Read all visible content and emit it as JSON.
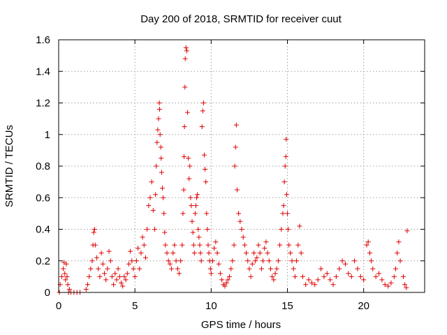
{
  "chart_data": {
    "type": "scatter",
    "title": "Day 200 of 2018, SRMTID for receiver cuut",
    "xlabel": "GPS time / hours",
    "ylabel": "SRMTID / TECUs",
    "xlim": [
      0,
      24
    ],
    "ylim": [
      0,
      1.6
    ],
    "xticks": [
      0,
      5,
      10,
      15,
      20
    ],
    "yticks": [
      0,
      0.2,
      0.4,
      0.6,
      0.8,
      1,
      1.2,
      1.4,
      1.6
    ],
    "xtick_labels": [
      "0",
      "5",
      "10",
      "15",
      "20"
    ],
    "ytick_labels": [
      "0",
      "0.2",
      "0.4",
      "0.6",
      "0.8",
      "1",
      "1.2",
      "1.4",
      "1.6"
    ],
    "grid": true,
    "marker": "+",
    "marker_color": "#e00000",
    "series": [
      {
        "name": "SRMTID",
        "x": [
          0.1,
          0.2,
          0.3,
          0.35,
          0.4,
          0.45,
          0.5,
          0.55,
          0.6,
          0.65,
          0.7,
          0.05,
          0.8,
          1.0,
          1.2,
          1.4,
          1.8,
          1.9,
          2.0,
          2.1,
          2.2,
          2.25,
          2.3,
          2.35,
          2.4,
          2.5,
          2.6,
          2.7,
          2.8,
          2.9,
          3.0,
          3.1,
          3.2,
          3.3,
          3.4,
          3.5,
          3.6,
          3.7,
          3.8,
          3.9,
          4.0,
          4.1,
          4.2,
          4.3,
          4.4,
          4.5,
          4.6,
          4.7,
          4.8,
          4.9,
          5.0,
          5.1,
          5.2,
          5.3,
          5.4,
          5.5,
          5.6,
          5.7,
          5.8,
          5.9,
          6.0,
          6.1,
          6.2,
          6.3,
          6.35,
          6.4,
          6.45,
          6.5,
          6.55,
          6.6,
          6.62,
          6.65,
          6.7,
          6.72,
          6.75,
          6.8,
          6.85,
          6.9,
          6.95,
          7.0,
          7.1,
          7.2,
          7.3,
          7.4,
          7.5,
          7.6,
          7.7,
          7.8,
          7.9,
          8.0,
          8.1,
          8.15,
          8.2,
          8.22,
          8.25,
          8.28,
          8.3,
          8.35,
          8.4,
          8.45,
          8.5,
          8.55,
          8.6,
          8.65,
          8.7,
          8.75,
          8.8,
          8.85,
          8.9,
          8.95,
          9.0,
          9.05,
          9.1,
          9.15,
          9.2,
          9.25,
          9.3,
          9.35,
          9.4,
          9.45,
          9.5,
          9.55,
          9.6,
          9.65,
          9.7,
          9.75,
          9.8,
          9.85,
          9.9,
          9.95,
          10.0,
          10.1,
          10.2,
          10.3,
          10.4,
          10.5,
          10.6,
          10.7,
          10.8,
          10.9,
          11.0,
          11.1,
          11.2,
          11.3,
          11.4,
          11.5,
          11.55,
          11.6,
          11.65,
          11.7,
          11.8,
          11.9,
          12.0,
          12.1,
          12.2,
          12.3,
          12.4,
          12.5,
          12.6,
          12.7,
          12.8,
          12.9,
          13.0,
          13.1,
          13.2,
          13.3,
          13.4,
          13.5,
          13.6,
          13.7,
          13.8,
          13.9,
          14.0,
          14.1,
          14.2,
          14.3,
          14.4,
          14.5,
          14.6,
          14.7,
          14.75,
          14.8,
          14.85,
          14.9,
          14.92,
          14.95,
          15.0,
          15.05,
          15.1,
          15.2,
          15.3,
          15.4,
          15.5,
          15.6,
          15.7,
          15.8,
          15.9,
          16.0,
          16.2,
          16.4,
          16.6,
          16.8,
          17.0,
          17.2,
          17.4,
          17.6,
          17.8,
          18.0,
          18.2,
          18.4,
          18.6,
          18.8,
          19.0,
          19.2,
          19.4,
          19.6,
          19.8,
          20.0,
          20.2,
          20.3,
          20.4,
          20.5,
          20.6,
          20.8,
          21.0,
          21.2,
          21.4,
          21.6,
          21.8,
          22.0,
          22.1,
          22.2,
          22.3,
          22.4,
          22.6,
          22.7,
          22.8,
          22.85
        ],
        "y": [
          0.05,
          0.1,
          0.15,
          0.19,
          0.12,
          0.08,
          0.18,
          0.1,
          0.05,
          0.0,
          0.02,
          0.0,
          0.0,
          0.0,
          0.0,
          0.0,
          0.02,
          0.05,
          0.1,
          0.15,
          0.2,
          0.3,
          0.38,
          0.4,
          0.3,
          0.22,
          0.15,
          0.1,
          0.25,
          0.18,
          0.12,
          0.08,
          0.15,
          0.26,
          0.2,
          0.1,
          0.05,
          0.12,
          0.08,
          0.15,
          0.1,
          0.06,
          0.04,
          0.1,
          0.08,
          0.12,
          0.18,
          0.26,
          0.2,
          0.15,
          0.1,
          0.2,
          0.28,
          0.15,
          0.25,
          0.35,
          0.3,
          0.22,
          0.4,
          0.55,
          0.6,
          0.7,
          0.52,
          0.4,
          0.62,
          0.8,
          0.95,
          1.03,
          1.1,
          1.2,
          1.16,
          1.0,
          0.92,
          0.85,
          0.76,
          0.66,
          0.6,
          0.5,
          0.38,
          0.3,
          0.25,
          0.2,
          0.18,
          0.15,
          0.25,
          0.3,
          0.2,
          0.15,
          0.12,
          0.2,
          0.3,
          0.5,
          0.65,
          0.86,
          1.05,
          1.3,
          1.48,
          1.55,
          1.53,
          1.14,
          0.85,
          0.72,
          0.8,
          0.6,
          0.55,
          0.45,
          0.38,
          0.3,
          0.25,
          0.5,
          0.55,
          0.6,
          0.62,
          0.4,
          0.35,
          0.3,
          0.25,
          0.2,
          1.05,
          1.15,
          1.2,
          0.87,
          0.78,
          0.7,
          0.5,
          0.4,
          0.3,
          0.25,
          0.2,
          0.15,
          0.12,
          0.2,
          0.28,
          0.32,
          0.25,
          0.18,
          0.12,
          0.08,
          0.05,
          0.04,
          0.06,
          0.08,
          0.1,
          0.15,
          0.2,
          0.3,
          0.8,
          0.92,
          1.06,
          0.65,
          0.5,
          0.45,
          0.4,
          0.35,
          0.3,
          0.25,
          0.2,
          0.15,
          0.1,
          0.18,
          0.25,
          0.2,
          0.22,
          0.3,
          0.25,
          0.15,
          0.2,
          0.28,
          0.32,
          0.25,
          0.2,
          0.15,
          0.1,
          0.08,
          0.12,
          0.15,
          0.2,
          0.3,
          0.4,
          0.5,
          0.55,
          0.7,
          0.8,
          0.86,
          0.97,
          0.62,
          0.5,
          0.4,
          0.3,
          0.25,
          0.2,
          0.15,
          0.1,
          0.2,
          0.3,
          0.42,
          0.25,
          0.1,
          0.05,
          0.08,
          0.06,
          0.05,
          0.08,
          0.15,
          0.1,
          0.12,
          0.08,
          0.05,
          0.1,
          0.15,
          0.2,
          0.18,
          0.12,
          0.1,
          0.2,
          0.15,
          0.1,
          0.08,
          0.3,
          0.32,
          0.25,
          0.2,
          0.15,
          0.1,
          0.12,
          0.08,
          0.05,
          0.04,
          0.06,
          0.1,
          0.15,
          0.25,
          0.32,
          0.2,
          0.1,
          0.05,
          0.03,
          0.39
        ]
      }
    ]
  }
}
